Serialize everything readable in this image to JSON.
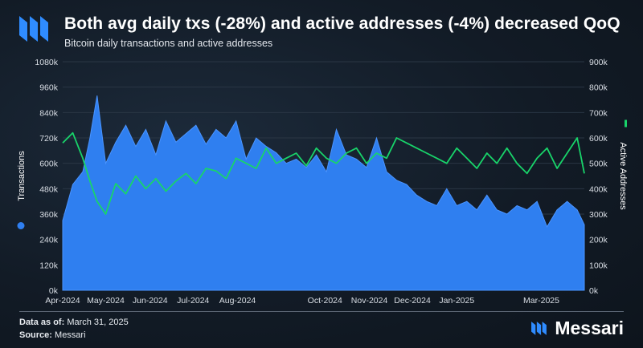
{
  "header": {
    "title": "Both avg daily txs (-28%) and active addresses (-4%) decreased QoQ",
    "subtitle": "Bitcoin daily transactions and active addresses"
  },
  "footer": {
    "data_as_of_label": "Data as of:",
    "data_as_of_value": "March 31, 2025",
    "source_label": "Source:",
    "source_value": "Messari",
    "brand_name": "Messari"
  },
  "colors": {
    "transactions": "#2f7ff0",
    "active_addresses": "#18d46a",
    "background": "#121b26"
  },
  "chart_data": {
    "type": "area",
    "title": "Both avg daily txs (-28%) and active addresses (-4%) decreased QoQ",
    "subtitle": "Bitcoin daily transactions and active addresses",
    "x_tick_labels": [
      "Apr-2024",
      "May-2024",
      "Jun-2024",
      "Jul-2024",
      "Aug-2024",
      "Oct-2024",
      "Nov-2024",
      "Dec-2024",
      "Jan-2025",
      "Mar-2025"
    ],
    "x_tick_dates": [
      "2024-04-01",
      "2024-05-01",
      "2024-06-01",
      "2024-07-01",
      "2024-08-01",
      "2024-10-01",
      "2024-11-01",
      "2024-12-01",
      "2025-01-01",
      "2025-03-01"
    ],
    "x_range": [
      "2024-04-01",
      "2025-03-31"
    ],
    "y_left": {
      "label": "Transactions",
      "range": [
        0,
        1080000
      ],
      "tick_labels": [
        "0k",
        "120k",
        "240k",
        "360k",
        "480k",
        "600k",
        "720k",
        "840k",
        "960k",
        "1080k"
      ],
      "tick_values": [
        0,
        120000,
        240000,
        360000,
        480000,
        600000,
        720000,
        840000,
        960000,
        1080000
      ]
    },
    "y_right": {
      "label": "Active Addresses",
      "range": [
        0,
        900000
      ],
      "tick_labels": [
        "0k",
        "100k",
        "200k",
        "300k",
        "400k",
        "500k",
        "600k",
        "700k",
        "800k",
        "900k"
      ],
      "tick_values": [
        0,
        100000,
        200000,
        300000,
        400000,
        500000,
        600000,
        700000,
        800000,
        900000
      ]
    },
    "grid": true,
    "legend": "vertical axis titles",
    "series": [
      {
        "name": "Transactions",
        "type": "area",
        "axis": "left",
        "dates": [
          "2024-04-01",
          "2024-04-08",
          "2024-04-15",
          "2024-04-20",
          "2024-04-25",
          "2024-05-01",
          "2024-05-08",
          "2024-05-15",
          "2024-05-22",
          "2024-05-29",
          "2024-06-05",
          "2024-06-12",
          "2024-06-19",
          "2024-06-26",
          "2024-07-03",
          "2024-07-10",
          "2024-07-17",
          "2024-07-24",
          "2024-07-31",
          "2024-08-07",
          "2024-08-14",
          "2024-08-21",
          "2024-08-28",
          "2024-09-04",
          "2024-09-11",
          "2024-09-18",
          "2024-09-25",
          "2024-10-02",
          "2024-10-09",
          "2024-10-16",
          "2024-10-23",
          "2024-10-30",
          "2024-11-06",
          "2024-11-13",
          "2024-11-20",
          "2024-11-27",
          "2024-12-04",
          "2024-12-11",
          "2024-12-18",
          "2024-12-25",
          "2025-01-01",
          "2025-01-08",
          "2025-01-15",
          "2025-01-22",
          "2025-01-29",
          "2025-02-05",
          "2025-02-12",
          "2025-02-19",
          "2025-02-26",
          "2025-03-05",
          "2025-03-12",
          "2025-03-19",
          "2025-03-26",
          "2025-03-31"
        ],
        "values": [
          330000,
          500000,
          560000,
          720000,
          920000,
          600000,
          700000,
          780000,
          680000,
          760000,
          640000,
          800000,
          700000,
          740000,
          780000,
          690000,
          760000,
          720000,
          800000,
          620000,
          720000,
          680000,
          650000,
          600000,
          620000,
          580000,
          640000,
          560000,
          760000,
          640000,
          620000,
          580000,
          720000,
          560000,
          520000,
          500000,
          450000,
          420000,
          400000,
          480000,
          400000,
          420000,
          380000,
          450000,
          380000,
          360000,
          400000,
          380000,
          420000,
          300000,
          380000,
          420000,
          380000,
          310000
        ]
      },
      {
        "name": "Active Addresses",
        "type": "line",
        "axis": "right",
        "dates": [
          "2024-04-01",
          "2024-04-08",
          "2024-04-15",
          "2024-04-20",
          "2024-04-25",
          "2024-05-01",
          "2024-05-08",
          "2024-05-15",
          "2024-05-22",
          "2024-05-29",
          "2024-06-05",
          "2024-06-12",
          "2024-06-19",
          "2024-06-26",
          "2024-07-03",
          "2024-07-10",
          "2024-07-17",
          "2024-07-24",
          "2024-07-31",
          "2024-08-07",
          "2024-08-14",
          "2024-08-21",
          "2024-08-28",
          "2024-09-04",
          "2024-09-11",
          "2024-09-18",
          "2024-09-25",
          "2024-10-02",
          "2024-10-09",
          "2024-10-16",
          "2024-10-23",
          "2024-10-30",
          "2024-11-06",
          "2024-11-13",
          "2024-11-20",
          "2024-11-27",
          "2024-12-04",
          "2024-12-11",
          "2024-12-18",
          "2024-12-25",
          "2025-01-01",
          "2025-01-08",
          "2025-01-15",
          "2025-01-22",
          "2025-01-29",
          "2025-02-05",
          "2025-02-12",
          "2025-02-19",
          "2025-02-26",
          "2025-03-05",
          "2025-03-12",
          "2025-03-19",
          "2025-03-26",
          "2025-03-31"
        ],
        "values": [
          580000,
          620000,
          520000,
          430000,
          350000,
          300000,
          420000,
          380000,
          450000,
          400000,
          440000,
          390000,
          430000,
          460000,
          420000,
          480000,
          470000,
          440000,
          520000,
          500000,
          480000,
          560000,
          500000,
          520000,
          540000,
          490000,
          560000,
          520000,
          500000,
          540000,
          560000,
          500000,
          540000,
          520000,
          600000,
          580000,
          560000,
          540000,
          520000,
          500000,
          560000,
          520000,
          480000,
          540000,
          500000,
          560000,
          500000,
          460000,
          520000,
          560000,
          480000,
          540000,
          600000,
          460000
        ]
      }
    ]
  }
}
